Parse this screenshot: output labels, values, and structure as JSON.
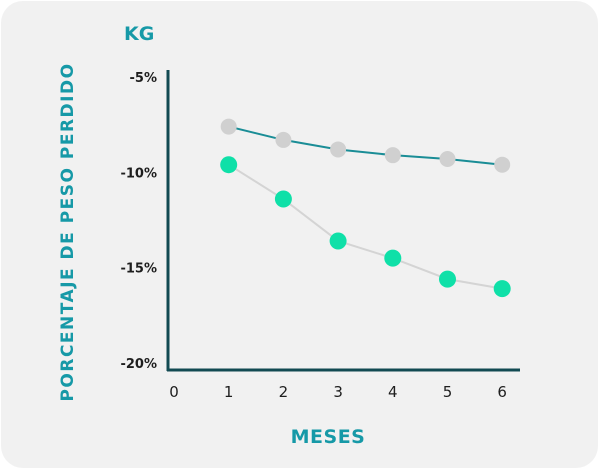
{
  "colors": {
    "title": "#1699a7",
    "axis": "#124a52",
    "tick_text": "#1e1e1e",
    "series_gray_marker": "#d0d0d0",
    "series_gray_line": "#1a8d96",
    "series_green_marker": "#0fe0a8",
    "series_green_line": "#d4d4d4"
  },
  "chart_data": {
    "type": "line",
    "unit_label": "KG",
    "xlabel": "MESES",
    "ylabel": "PORCENTAJE DE PESO PERDIDO",
    "x_ticks": [
      "0",
      "1",
      "2",
      "3",
      "4",
      "5",
      "6"
    ],
    "y_ticks": [
      "-5%",
      "-10%",
      "-15%",
      "-20%"
    ],
    "y_tick_values": [
      -5,
      -10,
      -15,
      -20
    ],
    "xlim": [
      0,
      6
    ],
    "ylim": [
      -20,
      -5
    ],
    "grid": false,
    "series": [
      {
        "x": [
          1,
          2,
          3,
          4,
          5,
          6
        ],
        "values": [
          -7.6,
          -8.3,
          -8.8,
          -9.1,
          -9.3,
          -9.6
        ]
      },
      {
        "x": [
          1,
          2,
          3,
          4,
          5,
          6
        ],
        "values": [
          -9.6,
          -11.4,
          -13.6,
          -14.5,
          -15.6,
          -16.1
        ]
      }
    ]
  }
}
